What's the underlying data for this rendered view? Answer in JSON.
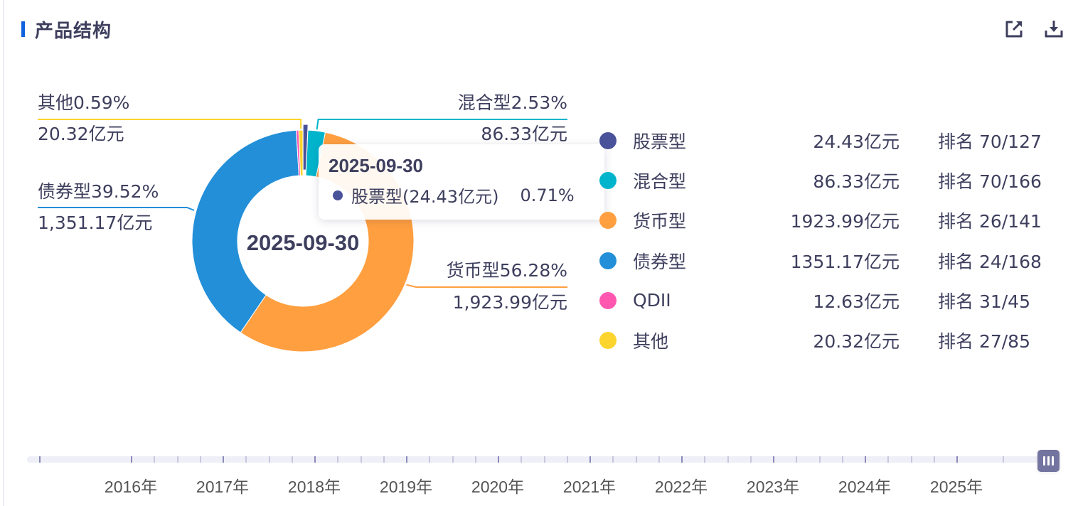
{
  "header": {
    "title": "产品结构",
    "accent_color": "#0f62de",
    "icons": [
      "external-link-icon",
      "download-icon"
    ]
  },
  "center_label": "2025-09-30",
  "tooltip": {
    "date": "2025-09-30",
    "series": "股票型(24.43亿元)",
    "percent": "0.71%",
    "color": "#4a5399"
  },
  "slice_labels": [
    {
      "key": "mixed",
      "line1": "混合型2.53%",
      "line2": "86.33亿元"
    },
    {
      "key": "money",
      "line1": "货币型56.28%",
      "line2": "1,923.99亿元"
    },
    {
      "key": "bond",
      "line1": "债券型39.52%",
      "line2": "1,351.17亿元"
    },
    {
      "key": "other",
      "line1": "其他0.59%",
      "line2": "20.32亿元"
    }
  ],
  "legend": [
    {
      "name": "股票型",
      "value": "24.43亿元",
      "rank": "排名 70/127",
      "color": "#4a5399"
    },
    {
      "name": "混合型",
      "value": "86.33亿元",
      "rank": "排名 70/166",
      "color": "#00b4cc"
    },
    {
      "name": "货币型",
      "value": "1923.99亿元",
      "rank": "排名 26/141",
      "color": "#ff9f40"
    },
    {
      "name": "债券型",
      "value": "1351.17亿元",
      "rank": "排名 24/168",
      "color": "#228fd8"
    },
    {
      "name": "QDII",
      "value": "12.63亿元",
      "rank": "排名 31/45",
      "color": "#ff57b0"
    },
    {
      "name": "其他",
      "value": "20.32亿元",
      "rank": "排名 27/85",
      "color": "#fbd42e"
    }
  ],
  "timeline": {
    "years": [
      "2016年",
      "2017年",
      "2018年",
      "2019年",
      "2020年",
      "2021年",
      "2022年",
      "2023年",
      "2024年",
      "2025年"
    ],
    "selected": "2025-09-30"
  },
  "chart_data": {
    "type": "pie",
    "subtype": "donut",
    "title": "产品结构",
    "date": "2025-09-30",
    "unit": "亿元",
    "categories": [
      "股票型",
      "混合型",
      "货币型",
      "债券型",
      "QDII",
      "其他"
    ],
    "values": [
      24.43,
      86.33,
      1923.99,
      1351.17,
      12.63,
      20.32
    ],
    "percents": [
      0.71,
      2.53,
      56.28,
      39.52,
      0.37,
      0.59
    ],
    "colors": [
      "#4a5399",
      "#00b4cc",
      "#ff9f40",
      "#228fd8",
      "#ff57b0",
      "#fbd42e"
    ],
    "ranks": [
      "70/127",
      "70/166",
      "26/141",
      "24/168",
      "31/45",
      "27/85"
    ],
    "highlighted": "股票型",
    "legend_position": "right"
  }
}
